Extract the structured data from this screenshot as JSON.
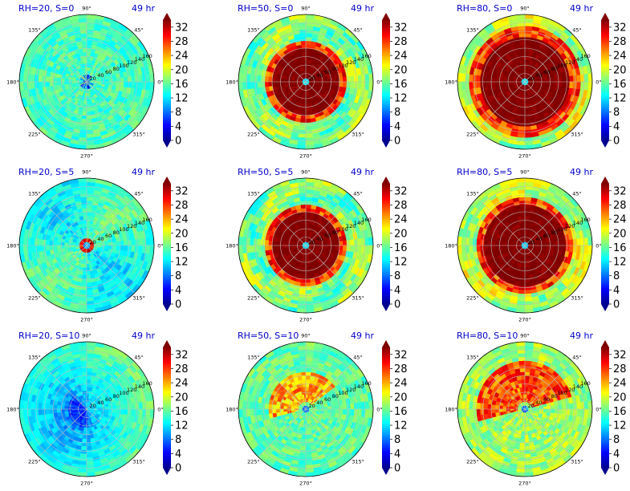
{
  "figure": {
    "colormap": "jet",
    "colorbar": {
      "ticks": [
        0,
        4,
        8,
        12,
        16,
        20,
        24,
        28,
        32
      ],
      "vmin": 0,
      "vmax": 34,
      "extend": "both"
    },
    "angle_labels": [
      "90°",
      "45°",
      "0°",
      "315°",
      "270°",
      "225°",
      "180°",
      "135°"
    ],
    "radial_labels": [
      "20",
      "40",
      "60",
      "80",
      "100",
      "120",
      "140",
      "160"
    ]
  },
  "chart_data": [
    {
      "type": "heatmap",
      "projection": "polar",
      "title": "RH=20, S=0",
      "time": "49 hr",
      "r_max": 160,
      "pattern": "low",
      "base": 15,
      "center": "mixed"
    },
    {
      "type": "heatmap",
      "projection": "polar",
      "title": "RH=50, S=0",
      "time": "49 hr",
      "r_max": 160,
      "pattern": "ring",
      "ring_outer": 80,
      "base": 17,
      "center": "eye"
    },
    {
      "type": "heatmap",
      "projection": "polar",
      "title": "RH=80, S=0",
      "time": "49 hr",
      "r_max": 160,
      "pattern": "ring",
      "ring_outer": 110,
      "base": 19,
      "center": "eye"
    },
    {
      "type": "heatmap",
      "projection": "polar",
      "title": "RH=20, S=5",
      "time": "49 hr",
      "r_max": 160,
      "pattern": "smallring",
      "ring_outer": 20,
      "base": 14,
      "center": "eye"
    },
    {
      "type": "heatmap",
      "projection": "polar",
      "title": "RH=50, S=5",
      "time": "49 hr",
      "r_max": 160,
      "pattern": "ring",
      "ring_outer": 80,
      "base": 17,
      "center": "eye"
    },
    {
      "type": "heatmap",
      "projection": "polar",
      "title": "RH=80, S=5",
      "time": "49 hr",
      "r_max": 160,
      "pattern": "ring",
      "ring_outer": 100,
      "base": 19,
      "center": "eye"
    },
    {
      "type": "heatmap",
      "projection": "polar",
      "title": "RH=20, S=10",
      "time": "49 hr",
      "r_max": 160,
      "pattern": "weak",
      "base": 12,
      "center": "low"
    },
    {
      "type": "heatmap",
      "projection": "polar",
      "title": "RH=50, S=10",
      "time": "49 hr",
      "r_max": 160,
      "pattern": "asym",
      "base": 16,
      "center": "low"
    },
    {
      "type": "heatmap",
      "projection": "polar",
      "title": "RH=80, S=10",
      "time": "49 hr",
      "r_max": 160,
      "pattern": "asymstrong",
      "base": 18,
      "center": "low"
    }
  ]
}
